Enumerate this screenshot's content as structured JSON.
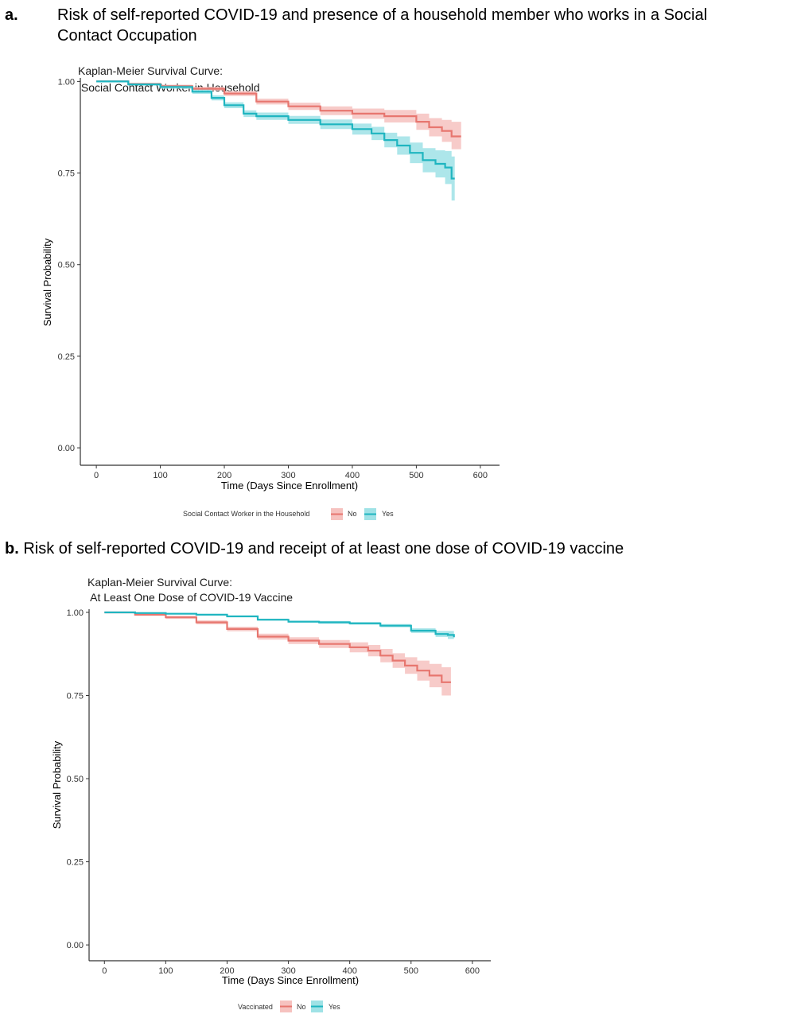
{
  "panels": [
    {
      "letter": "a.",
      "heading_line1": "Risk of self-reported COVID-19 and presence of a household member who works in a Social",
      "heading_line2": "Contact Occupation"
    },
    {
      "letter": "b.",
      "heading": "Risk of self-reported COVID-19 and receipt of at least one dose of COVID-19 vaccine"
    }
  ],
  "colors": {
    "No": "#E7766F",
    "Yes": "#1FB5C0",
    "No_band": "#F6C2BF",
    "Yes_band": "#9FE2E6"
  },
  "chart_data": [
    {
      "type": "line",
      "title_line1": "Kaplan-Meier Survival Curve:",
      "title_line2": " Social Contact Worker in Household",
      "xlabel": "Time (Days Since Enrollment)",
      "ylabel": "Survival Probability",
      "xlim": [
        -25,
        630
      ],
      "ylim": [
        0,
        1
      ],
      "xticks": [
        0,
        100,
        200,
        300,
        400,
        500,
        600
      ],
      "yticks": [
        "0.00",
        "0.25",
        "0.50",
        "0.75",
        "1.00"
      ],
      "grid": false,
      "legend_title": "Social Contact Worker in the Household",
      "legend_position": "bottom",
      "series": [
        {
          "name": "No",
          "x": [
            0,
            50,
            100,
            150,
            200,
            250,
            300,
            350,
            400,
            450,
            500,
            520,
            540,
            555,
            570
          ],
          "y": [
            1.0,
            0.993,
            0.987,
            0.98,
            0.967,
            0.945,
            0.932,
            0.92,
            0.912,
            0.905,
            0.89,
            0.875,
            0.865,
            0.85,
            0.85
          ],
          "lower": [
            1.0,
            0.99,
            0.983,
            0.975,
            0.96,
            0.937,
            0.922,
            0.908,
            0.898,
            0.888,
            0.868,
            0.85,
            0.835,
            0.815,
            0.815
          ],
          "upper": [
            1.0,
            0.996,
            0.991,
            0.985,
            0.974,
            0.953,
            0.942,
            0.932,
            0.926,
            0.922,
            0.912,
            0.9,
            0.895,
            0.89,
            0.89
          ]
        },
        {
          "name": "Yes",
          "x": [
            0,
            50,
            100,
            150,
            180,
            200,
            230,
            250,
            300,
            350,
            400,
            430,
            450,
            470,
            490,
            510,
            530,
            545,
            555,
            560
          ],
          "y": [
            1.0,
            0.992,
            0.985,
            0.972,
            0.955,
            0.935,
            0.912,
            0.905,
            0.895,
            0.883,
            0.87,
            0.858,
            0.84,
            0.825,
            0.805,
            0.785,
            0.775,
            0.765,
            0.735,
            0.735
          ],
          "lower": [
            1.0,
            0.989,
            0.98,
            0.966,
            0.948,
            0.927,
            0.903,
            0.895,
            0.884,
            0.87,
            0.855,
            0.84,
            0.82,
            0.8,
            0.777,
            0.752,
            0.738,
            0.72,
            0.675,
            0.675
          ],
          "upper": [
            1.0,
            0.995,
            0.99,
            0.978,
            0.962,
            0.943,
            0.921,
            0.915,
            0.906,
            0.896,
            0.885,
            0.876,
            0.86,
            0.85,
            0.833,
            0.818,
            0.812,
            0.81,
            0.795,
            0.795
          ]
        }
      ]
    },
    {
      "type": "line",
      "title_line1": "Kaplan-Meier Survival Curve:",
      "title_line2": " At Least One Dose of COVID-19 Vaccine",
      "xlabel": "Time (Days Since Enrollment)",
      "ylabel": "Survival Probability",
      "xlim": [
        -25,
        630
      ],
      "ylim": [
        0,
        1
      ],
      "xticks": [
        0,
        100,
        200,
        300,
        400,
        500,
        600
      ],
      "yticks": [
        "0.00",
        "0.25",
        "0.50",
        "0.75",
        "1.00"
      ],
      "grid": false,
      "legend_title": "Vaccinated",
      "legend_position": "bottom",
      "series": [
        {
          "name": "No",
          "x": [
            0,
            50,
            100,
            150,
            200,
            250,
            300,
            350,
            400,
            430,
            450,
            470,
            490,
            510,
            530,
            550,
            565
          ],
          "y": [
            1.0,
            0.993,
            0.985,
            0.97,
            0.95,
            0.927,
            0.915,
            0.905,
            0.895,
            0.885,
            0.87,
            0.855,
            0.84,
            0.825,
            0.81,
            0.79,
            0.79
          ],
          "lower": [
            1.0,
            0.99,
            0.98,
            0.964,
            0.943,
            0.918,
            0.905,
            0.893,
            0.88,
            0.868,
            0.85,
            0.833,
            0.815,
            0.795,
            0.775,
            0.75,
            0.75
          ],
          "upper": [
            1.0,
            0.996,
            0.99,
            0.976,
            0.957,
            0.936,
            0.925,
            0.917,
            0.91,
            0.902,
            0.89,
            0.877,
            0.865,
            0.855,
            0.845,
            0.835,
            0.835
          ]
        },
        {
          "name": "Yes",
          "x": [
            0,
            50,
            100,
            150,
            200,
            250,
            300,
            350,
            400,
            450,
            500,
            540,
            560,
            570
          ],
          "y": [
            1.0,
            0.998,
            0.996,
            0.993,
            0.988,
            0.978,
            0.972,
            0.97,
            0.967,
            0.96,
            0.945,
            0.935,
            0.932,
            0.925
          ],
          "lower": [
            1.0,
            0.997,
            0.995,
            0.991,
            0.986,
            0.975,
            0.969,
            0.966,
            0.963,
            0.955,
            0.938,
            0.926,
            0.92,
            0.918
          ],
          "upper": [
            1.0,
            0.999,
            0.998,
            0.995,
            0.99,
            0.981,
            0.975,
            0.974,
            0.971,
            0.965,
            0.952,
            0.944,
            0.944,
            0.936
          ]
        }
      ]
    }
  ]
}
